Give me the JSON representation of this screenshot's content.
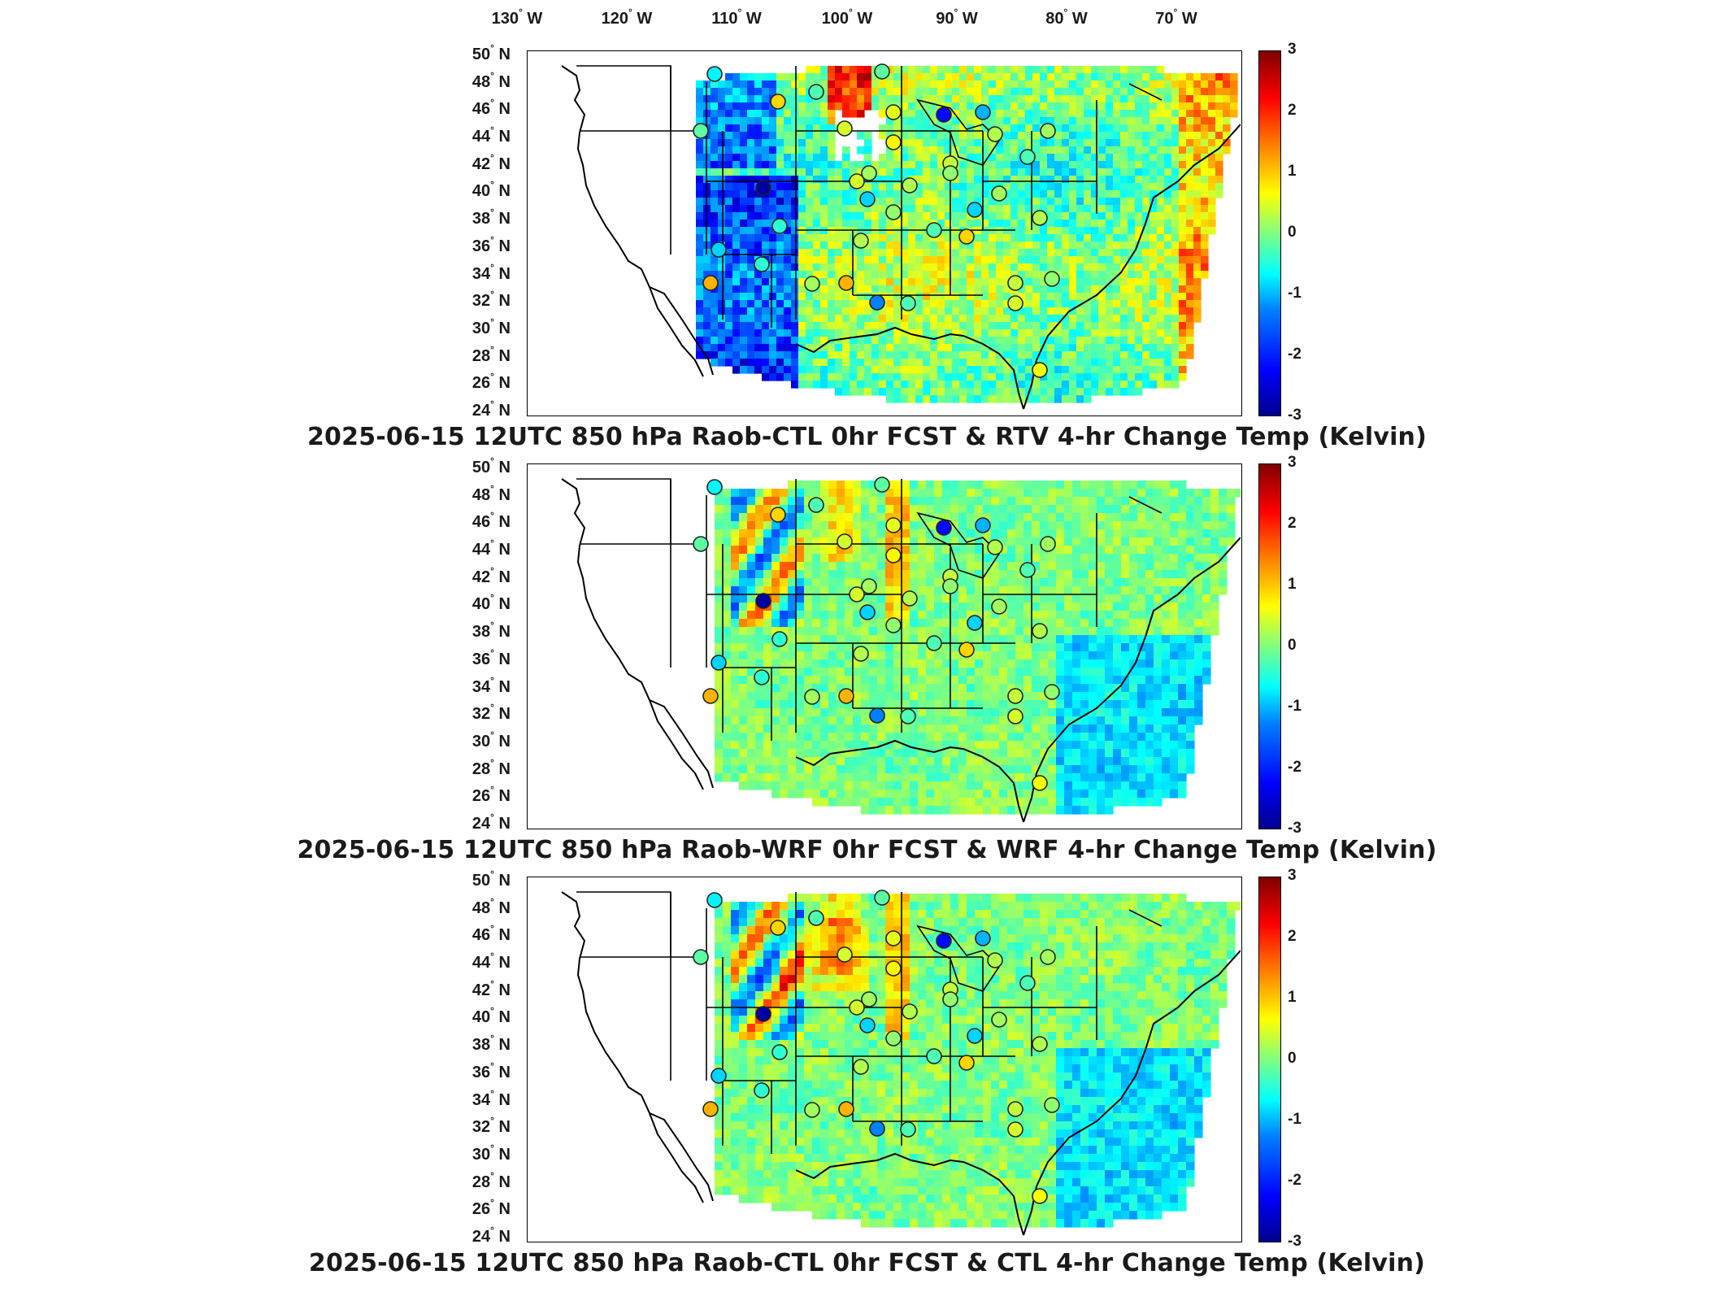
{
  "figure": {
    "lon_ticks": [
      "130",
      "120",
      "110",
      "100",
      "90",
      "80",
      "70"
    ],
    "lon_suffix": "W",
    "lat_suffix": "N",
    "degree_symbol": "°",
    "colorbar": {
      "min": -3,
      "max": 3,
      "ticks": [
        "3",
        "2",
        "1",
        "0",
        "-1",
        "-2",
        "-3"
      ],
      "colormap": "jet"
    }
  },
  "panels": [
    {
      "title": "2025-06-15 12UTC 850 hPa Raob-CTL 0hr FCST & RTV 4-hr Change Temp (Kelvin)",
      "lat_ticks": [
        "50",
        "48",
        "46",
        "44",
        "42",
        "40",
        "38",
        "36",
        "34",
        "32",
        "30",
        "28",
        "26",
        "24"
      ]
    },
    {
      "title": "2025-06-15 12UTC 850 hPa Raob-WRF 0hr FCST & WRF 4-hr Change Temp (Kelvin)",
      "lat_ticks": [
        "50",
        "48",
        "46",
        "44",
        "42",
        "40",
        "38",
        "36",
        "34",
        "32",
        "30",
        "28",
        "26",
        "24"
      ]
    },
    {
      "title": "2025-06-15 12UTC 850 hPa Raob-CTL 0hr FCST & CTL 4-hr Change Temp (Kelvin)",
      "lat_ticks": [
        "50",
        "48",
        "46",
        "44",
        "42",
        "40",
        "38",
        "36",
        "34",
        "32",
        "30",
        "28",
        "26",
        "24"
      ]
    }
  ],
  "colors": {
    "low": "#00008f",
    "mid": "#80ff80",
    "high": "#800000",
    "background": "#ffffff"
  }
}
